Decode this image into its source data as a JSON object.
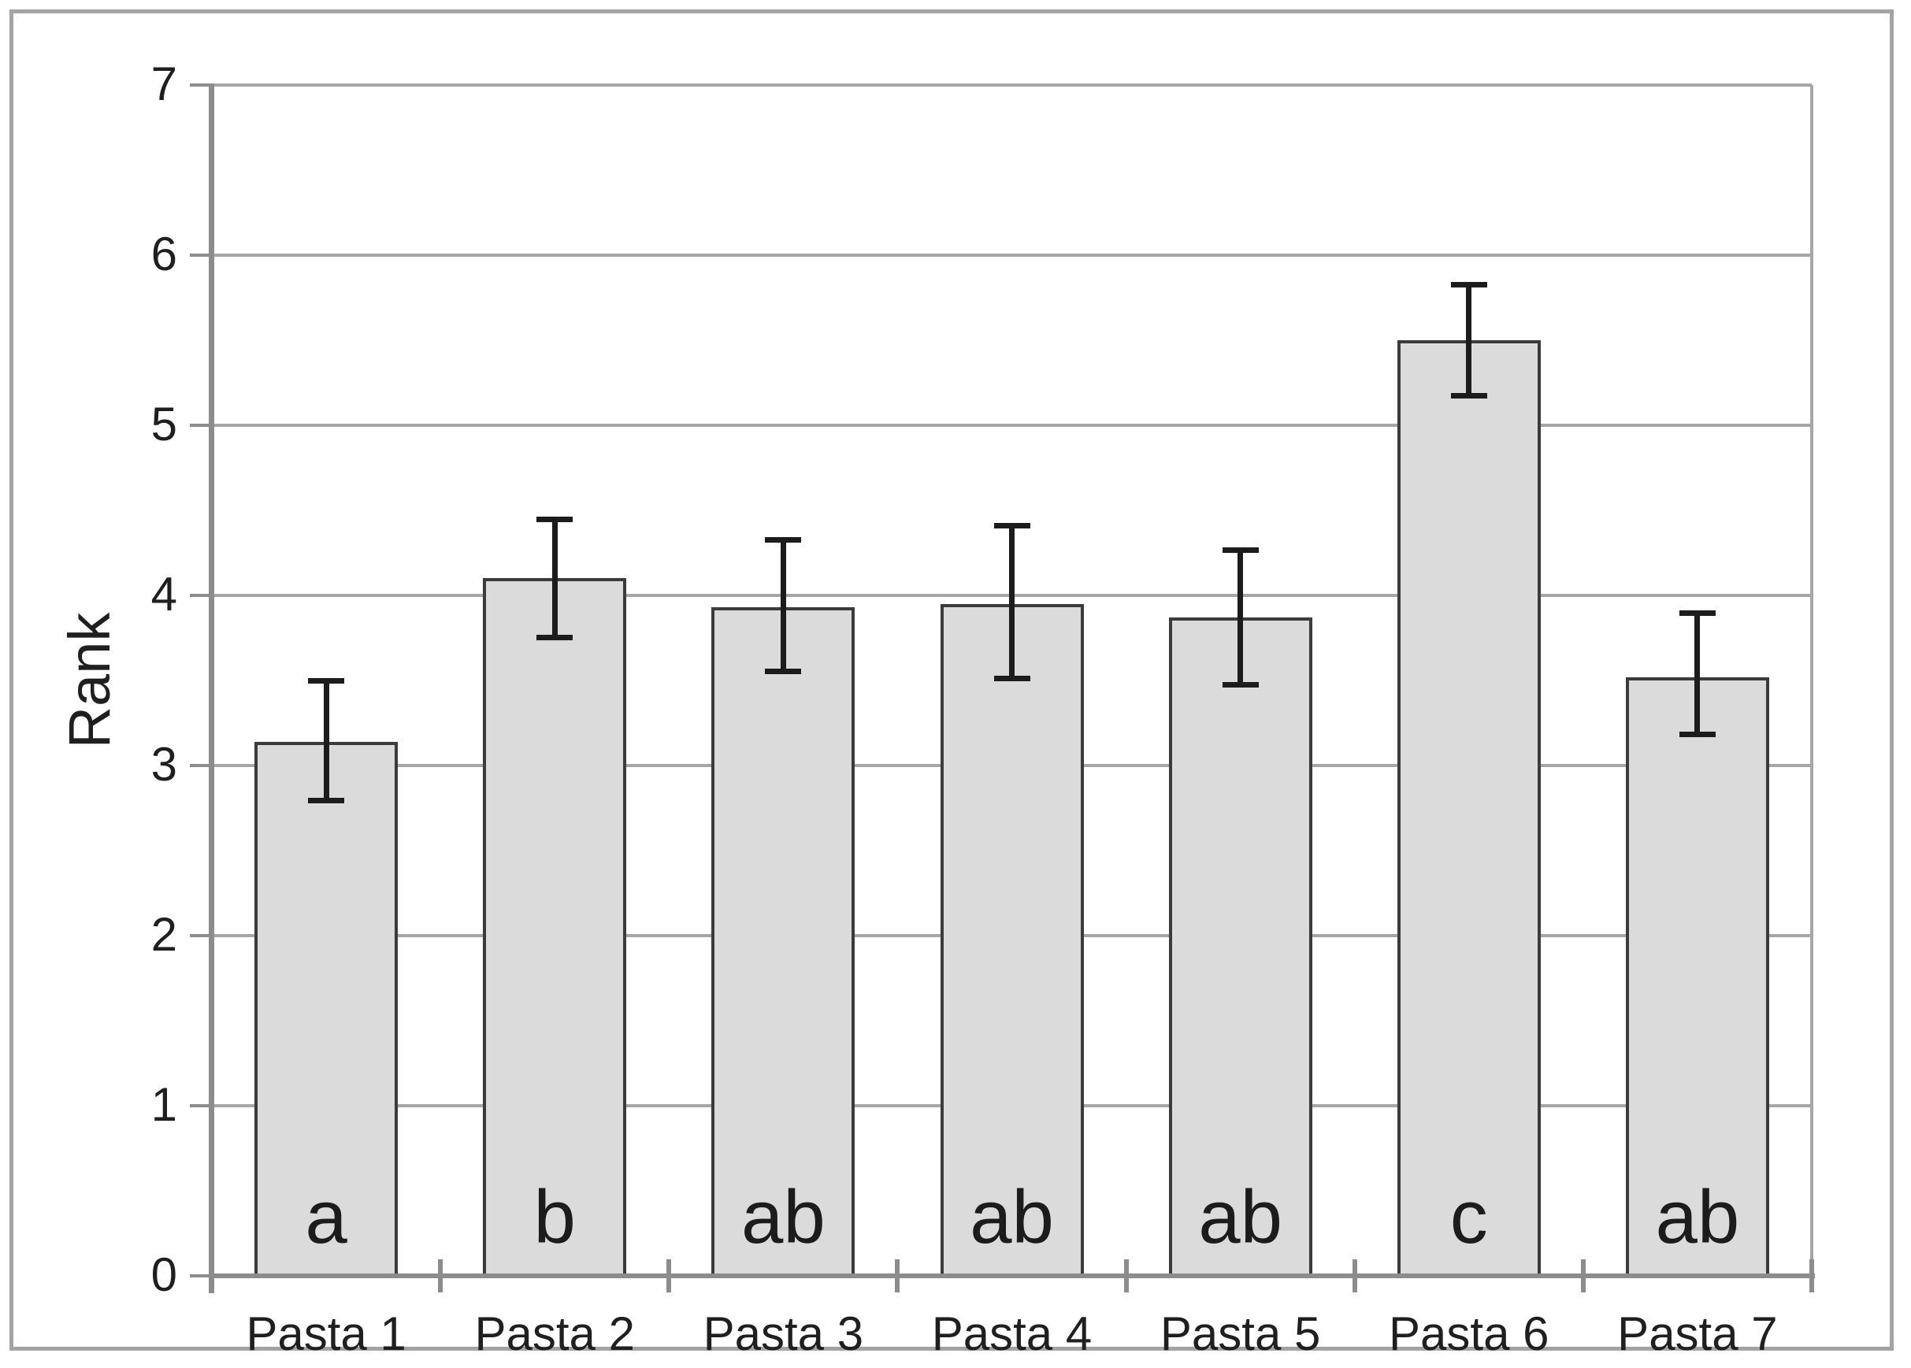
{
  "figure": {
    "kind": "excel-style bar chart with error bars",
    "background": "#ffffff"
  },
  "chart_data": {
    "type": "bar",
    "title": "",
    "xlabel": "",
    "ylabel": "Rank",
    "ylim": [
      0,
      7
    ],
    "ytick_step": 1,
    "ytick_labels": [
      "0",
      "1",
      "2",
      "3",
      "4",
      "5",
      "6",
      "7"
    ],
    "grid": true,
    "legend_position": "none",
    "categories": [
      "Pasta 1",
      "Pasta 2",
      "Pasta 3",
      "Pasta 4",
      "Pasta 5",
      "Pasta 6",
      "Pasta 7"
    ],
    "series": [
      {
        "name": "Rank",
        "values": [
          3.14,
          4.1,
          3.93,
          3.95,
          3.87,
          5.5,
          3.52
        ],
        "error_plus": [
          0.36,
          0.35,
          0.4,
          0.46,
          0.4,
          0.33,
          0.38
        ],
        "error_minus": [
          0.35,
          0.35,
          0.38,
          0.44,
          0.4,
          0.33,
          0.34
        ]
      }
    ],
    "significance_letters": [
      "a",
      "b",
      "ab",
      "ab",
      "ab",
      "c",
      "ab"
    ],
    "colors": {
      "bar_fill": "#dbdbdb",
      "bar_border": "#3b3b3b",
      "error_bar": "#1c1c1c",
      "gridline": "#a6a6a6",
      "axis_line": "#8c8c8c",
      "text": "#1f1f1f",
      "frame_border": "#a3a3a3"
    }
  }
}
